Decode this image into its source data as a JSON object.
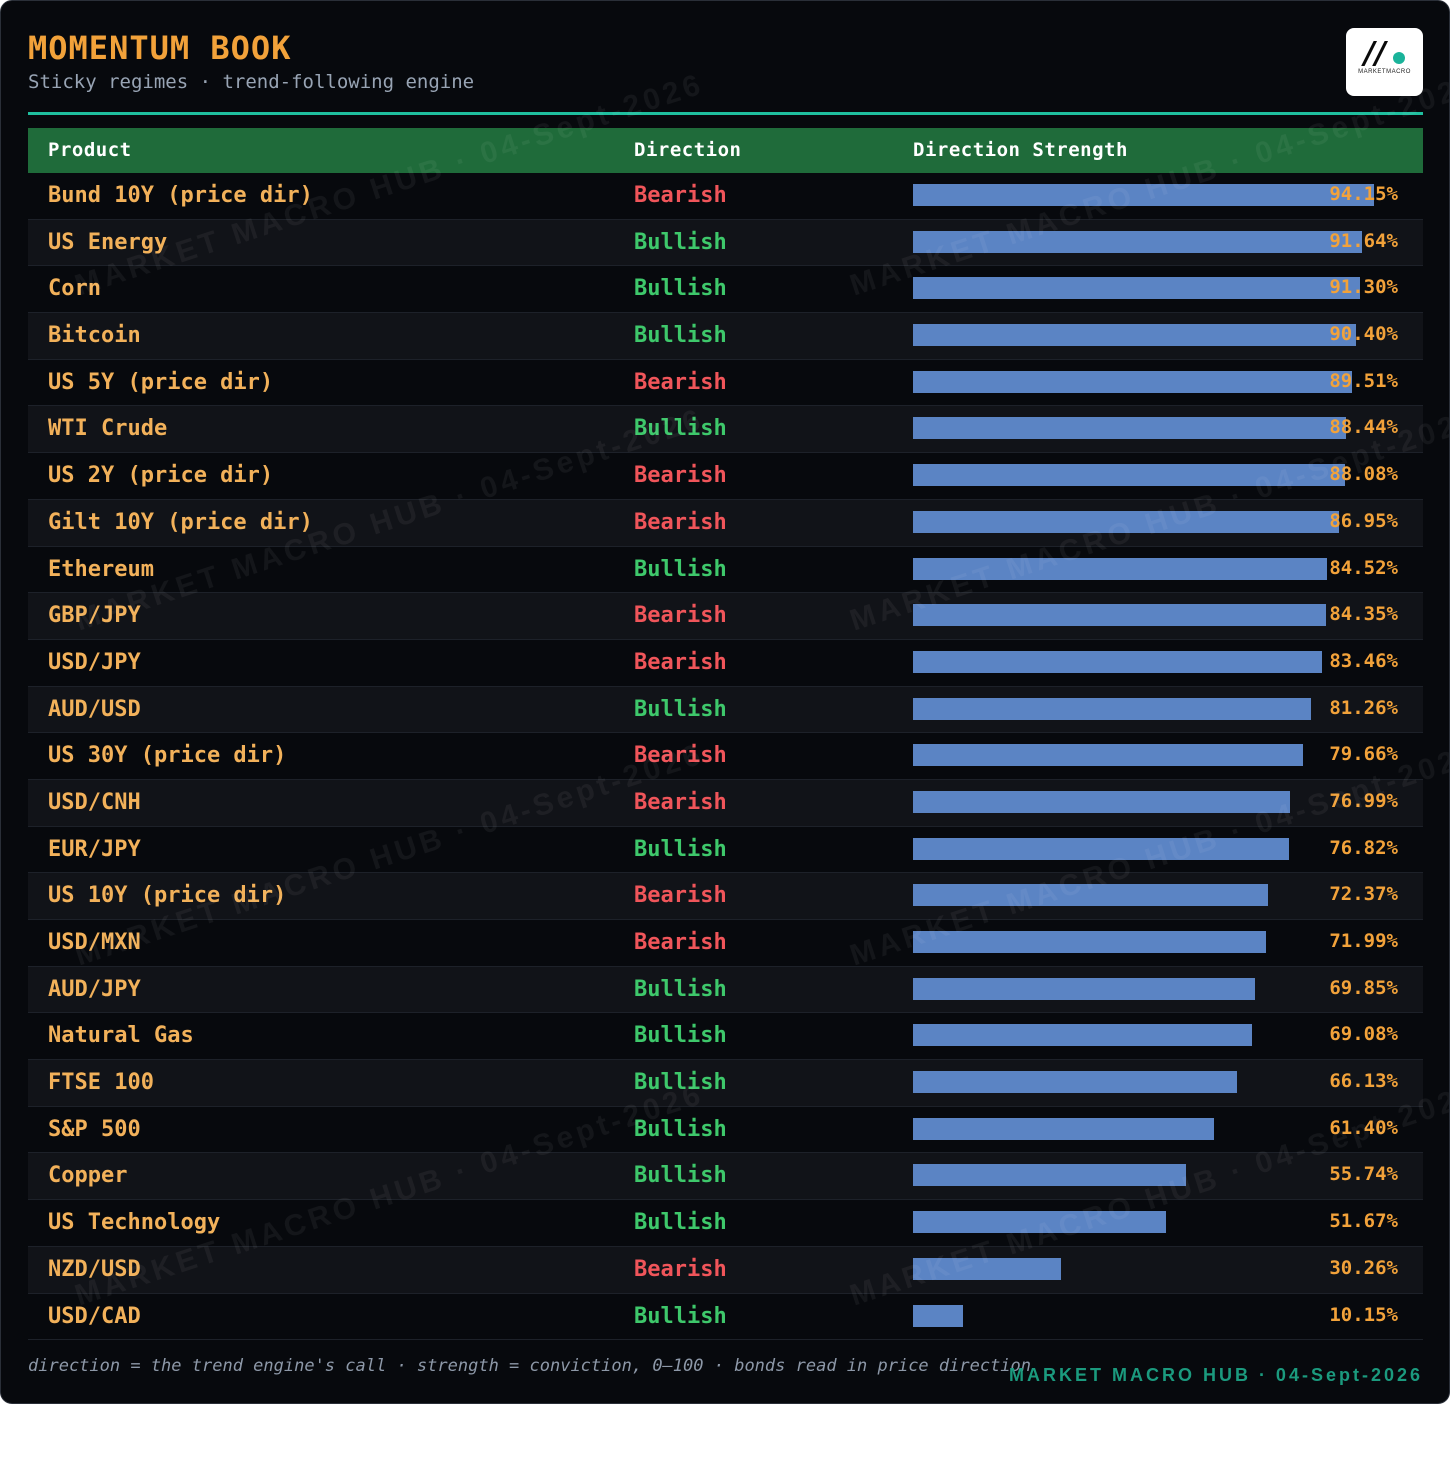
{
  "header": {
    "title": "MOMENTUM BOOK",
    "subtitle": "Sticky regimes · trend-following engine",
    "logo_text": "MARKETMACRO"
  },
  "table": {
    "columns": [
      "Product",
      "Direction",
      "Direction Strength"
    ],
    "rows": [
      {
        "product": "Bund 10Y (price dir)",
        "direction": "Bearish",
        "strength": "94.15%",
        "value": 94.15
      },
      {
        "product": "US Energy",
        "direction": "Bullish",
        "strength": "91.64%",
        "value": 91.64
      },
      {
        "product": "Corn",
        "direction": "Bullish",
        "strength": "91.30%",
        "value": 91.3
      },
      {
        "product": "Bitcoin",
        "direction": "Bullish",
        "strength": "90.40%",
        "value": 90.4
      },
      {
        "product": "US 5Y (price dir)",
        "direction": "Bearish",
        "strength": "89.51%",
        "value": 89.51
      },
      {
        "product": "WTI Crude",
        "direction": "Bullish",
        "strength": "88.44%",
        "value": 88.44
      },
      {
        "product": "US 2Y (price dir)",
        "direction": "Bearish",
        "strength": "88.08%",
        "value": 88.08
      },
      {
        "product": "Gilt 10Y (price dir)",
        "direction": "Bearish",
        "strength": "86.95%",
        "value": 86.95
      },
      {
        "product": "Ethereum",
        "direction": "Bullish",
        "strength": "84.52%",
        "value": 84.52
      },
      {
        "product": "GBP/JPY",
        "direction": "Bearish",
        "strength": "84.35%",
        "value": 84.35
      },
      {
        "product": "USD/JPY",
        "direction": "Bearish",
        "strength": "83.46%",
        "value": 83.46
      },
      {
        "product": "AUD/USD",
        "direction": "Bullish",
        "strength": "81.26%",
        "value": 81.26
      },
      {
        "product": "US 30Y (price dir)",
        "direction": "Bearish",
        "strength": "79.66%",
        "value": 79.66
      },
      {
        "product": "USD/CNH",
        "direction": "Bearish",
        "strength": "76.99%",
        "value": 76.99
      },
      {
        "product": "EUR/JPY",
        "direction": "Bullish",
        "strength": "76.82%",
        "value": 76.82
      },
      {
        "product": "US 10Y (price dir)",
        "direction": "Bearish",
        "strength": "72.37%",
        "value": 72.37
      },
      {
        "product": "USD/MXN",
        "direction": "Bearish",
        "strength": "71.99%",
        "value": 71.99
      },
      {
        "product": "AUD/JPY",
        "direction": "Bullish",
        "strength": "69.85%",
        "value": 69.85
      },
      {
        "product": "Natural Gas",
        "direction": "Bullish",
        "strength": "69.08%",
        "value": 69.08
      },
      {
        "product": "FTSE 100",
        "direction": "Bullish",
        "strength": "66.13%",
        "value": 66.13
      },
      {
        "product": "S&P 500",
        "direction": "Bullish",
        "strength": "61.40%",
        "value": 61.4
      },
      {
        "product": "Copper",
        "direction": "Bullish",
        "strength": "55.74%",
        "value": 55.74
      },
      {
        "product": "US Technology",
        "direction": "Bullish",
        "strength": "51.67%",
        "value": 51.67
      },
      {
        "product": "NZD/USD",
        "direction": "Bearish",
        "strength": "30.26%",
        "value": 30.26
      },
      {
        "product": "USD/CAD",
        "direction": "Bullish",
        "strength": "10.15%",
        "value": 10.15
      }
    ]
  },
  "footer": {
    "note": "direction = the trend engine's call · strength = conviction, 0–100 · bonds read in price direction",
    "brand": "MARKET MACRO HUB · 04-Sept-2026"
  },
  "watermark": "MARKET MACRO HUB · 04-Sept-2026",
  "colors": {
    "accent": "#f2a23a",
    "bullish": "#3ec86b",
    "bearish": "#f0555a",
    "bar": "#5b84c4",
    "header_bg": "#1f6b3a",
    "rule": "#1fbf9f"
  }
}
